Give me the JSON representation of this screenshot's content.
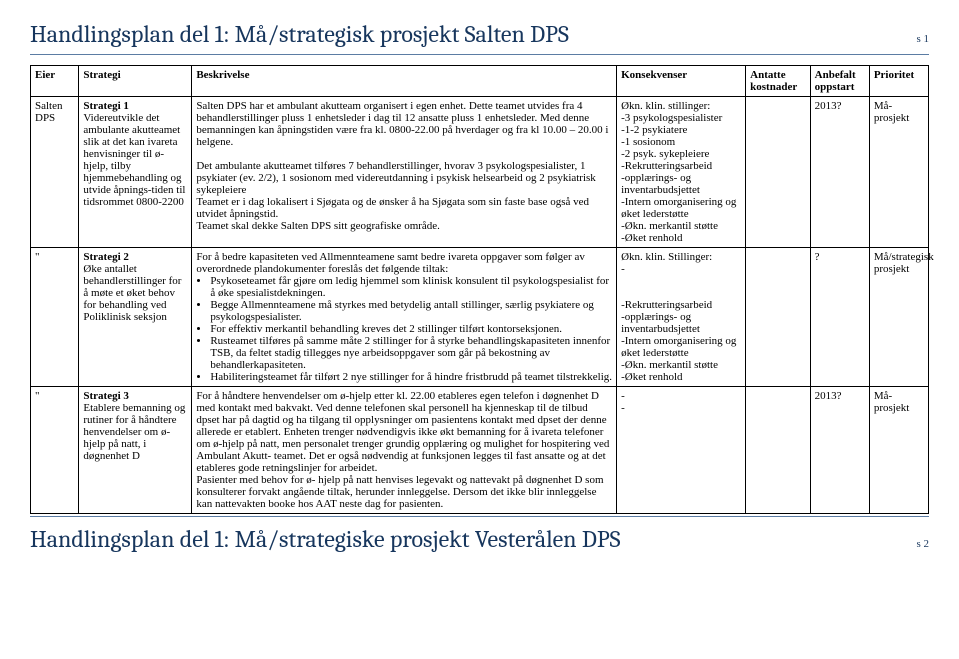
{
  "header": {
    "title": "Handlingsplan del 1: Må/strategisk prosjekt Salten DPS",
    "page": "s 1"
  },
  "footer": {
    "title": "Handlingsplan del 1: Må/strategiske prosjekt Vesterålen DPS",
    "page": "s 2"
  },
  "columns": {
    "c1": "Eier",
    "c2": "Strategi",
    "c3": "Beskrivelse",
    "c4": "Konsekvenser",
    "c5": "Antatte kostnader",
    "c6": "Anbefalt oppstart",
    "c7": "Prioritet"
  },
  "rows": [
    {
      "eier": "Salten DPS",
      "strategi_title": "Strategi 1",
      "strategi_body": "Videreutvikle det ambulante akutteamet slik at det kan ivareta henvisninger til ø-hjelp, tilby hjemmebehandling og utvide åpnings-tiden til tidsrommet 0800-2200",
      "beskrivelse_p1": "Salten DPS har et ambulant akutteam organisert i egen enhet. Dette teamet utvides fra 4 behandlerstillinger pluss 1 enhetsleder i dag til 12 ansatte pluss 1 enhetsleder. Med denne bemanningen kan åpningstiden være fra kl. 0800-22.00 på hverdager og fra kl 10.00 – 20.00 i helgene.",
      "beskrivelse_p2": "Det ambulante akutteamet tilføres 7 behandlerstillinger, hvorav 3 psykologspesialister, 1 psykiater (ev. 2/2), 1 sosionom med videreutdanning i psykisk helsearbeid og 2 psykiatrisk sykepleiere",
      "beskrivelse_p3": "Teamet er i dag lokalisert i Sjøgata og de ønsker å ha Sjøgata som sin faste base også ved utvidet åpningstid.",
      "beskrivelse_p4": "Teamet skal dekke Salten DPS sitt geografiske område.",
      "konsekvens_lead": "Økn. klin. stillinger:",
      "konsekvens_lines": [
        "-3 psykologspesialister",
        "-1-2 psykiatere",
        "-1 sosionom",
        "-2 psyk. sykepleiere",
        "-Rekrutteringsarbeid",
        "-opplærings- og inventarbudsjettet",
        "-Intern omorganisering og øket lederstøtte",
        "-Økn. merkantil støtte",
        "-Øket renhold"
      ],
      "antatte": "",
      "anbefalt": "2013?",
      "prioritet": "Må-prosjekt"
    },
    {
      "eier": "\"",
      "strategi_title": "Strategi 2",
      "strategi_body": "Øke antallet behandlerstillinger for å møte et øket behov for behandling ved Poliklinisk seksjon",
      "beskrivelse_lead": "For å bedre kapasiteten ved Allmennteamene samt bedre ivareta oppgaver som følger av overordnede plandokumenter foreslås det følgende tiltak:",
      "beskrivelse_bullets": [
        "Psykoseteamet får gjøre om ledig hjemmel som klinisk konsulent til psykologspesialist for å øke spesialistdekningen.",
        "Begge Allmennteamene må styrkes med betydelig antall stillinger, særlig psykiatere og psykologspesialister.",
        "For effektiv merkantil behandling kreves det 2 stillinger tilført kontorseksjonen.",
        "Rusteamet tilføres på samme måte 2 stillinger for å styrke behandlingskapasiteten innenfor TSB, da feltet stadig tillegges nye arbeidsoppgaver som går på bekostning av behandlerkapasiteten.",
        "Habiliteringsteamet får tilført 2 nye stillinger for å hindre fristbrudd på teamet tilstrekkelig."
      ],
      "konsekvens_lead": "Økn. klin. Stillinger:",
      "konsekvens_dash": "-",
      "konsekvens_blank": "",
      "konsekvens_lines": [
        "-Rekrutteringsarbeid",
        "-opplærings- og inventarbudsjettet",
        "-Intern omorganisering og øket lederstøtte",
        "-Økn. merkantil støtte",
        "-Øket renhold"
      ],
      "antatte": "",
      "anbefalt": "?",
      "prioritet": "Må/strategisk prosjekt"
    },
    {
      "eier": "\"",
      "strategi_title": "Strategi 3",
      "strategi_body": "Etablere bemanning og rutiner for å håndtere henvendelser om ø-hjelp på natt, i døgnenhet D",
      "beskrivelse_p1": "For å håndtere henvendelser om ø-hjelp etter kl. 22.00 etableres egen telefon i døgnenhet D med kontakt med bakvakt. Ved denne telefonen skal personell ha kjenneskap til de tilbud dpset har på dagtid og ha tilgang til opplysninger om pasientens kontakt med dpset der denne allerede er etablert. Enheten trenger nødvendigvis ikke økt bemanning for å ivareta telefoner om ø-hjelp på natt, men personalet trenger grundig opplæring og mulighet for hospitering ved Ambulant Akutt- teamet. Det er også nødvendig at funksjonen legges til fast ansatte og at det etableres gode retningslinjer for arbeidet.",
      "beskrivelse_p2": "Pasienter med behov for ø- hjelp på natt henvises legevakt og nattevakt på døgnenhet D som konsulterer forvakt angående tiltak, herunder innleggelse. Dersom det ikke blir innleggelse kan nattevakten booke hos AAT neste dag for pasienten.",
      "konsekvens_l1": "-",
      "konsekvens_l2": "-",
      "antatte": "",
      "anbefalt": "2013?",
      "prioritet": "Må-prosjekt"
    }
  ]
}
